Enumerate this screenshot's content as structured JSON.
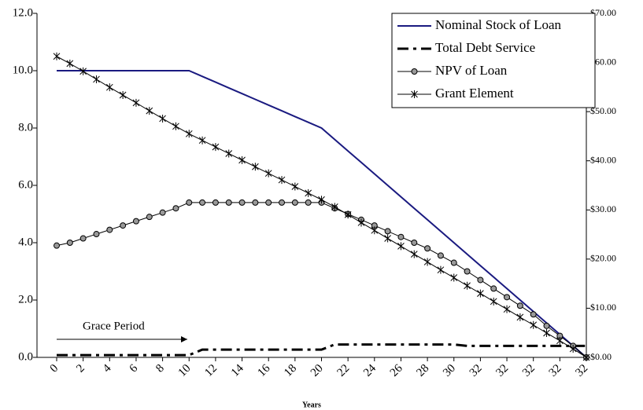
{
  "chart_data": {
    "type": "line",
    "categories": [
      "0",
      null,
      "2",
      null,
      "4",
      null,
      "6",
      null,
      "8",
      null,
      "10",
      null,
      "12",
      null,
      "14",
      null,
      "16",
      null,
      "18",
      null,
      "20",
      null,
      "22",
      null,
      "24",
      null,
      "26",
      null,
      "28",
      null,
      "30",
      null,
      "32",
      null,
      "32",
      null,
      "32",
      null,
      "32",
      null,
      "32"
    ],
    "xlabel": "Years",
    "series": [
      {
        "name": "Nominal Stock of Loan",
        "color": "#1a1a80",
        "style": "solid",
        "values": [
          10,
          10,
          10,
          10,
          10,
          10,
          10,
          10,
          10,
          10,
          10,
          9.8,
          9.6,
          9.4,
          9.2,
          9.0,
          8.8,
          8.6,
          8.4,
          8.2,
          8.0,
          7.6,
          7.2,
          6.8,
          6.4,
          6.0,
          5.6,
          5.2,
          4.8,
          4.4,
          4.0,
          3.6,
          3.2,
          2.8,
          2.4,
          2.0,
          1.6,
          1.2,
          0.8,
          0.4,
          0.0
        ]
      },
      {
        "name": "Total Debt Service",
        "color": "#000000",
        "style": "dashdot",
        "values": [
          0.08,
          0.08,
          0.08,
          0.08,
          0.08,
          0.08,
          0.08,
          0.08,
          0.08,
          0.08,
          0.08,
          0.27,
          0.27,
          0.27,
          0.27,
          0.27,
          0.27,
          0.27,
          0.27,
          0.27,
          0.27,
          0.45,
          0.45,
          0.45,
          0.45,
          0.45,
          0.45,
          0.45,
          0.45,
          0.45,
          0.45,
          0.4,
          0.4,
          0.4,
          0.4,
          0.4,
          0.4,
          0.4,
          0.4,
          0.4,
          0.4
        ]
      },
      {
        "name": "NPV of Loan",
        "color": "#000000",
        "style": "circle",
        "values": [
          3.9,
          4.0,
          4.15,
          4.3,
          4.45,
          4.6,
          4.75,
          4.9,
          5.05,
          5.2,
          5.4,
          5.4,
          5.4,
          5.4,
          5.4,
          5.4,
          5.4,
          5.4,
          5.4,
          5.4,
          5.4,
          5.2,
          5.0,
          4.8,
          4.6,
          4.4,
          4.2,
          4.0,
          3.8,
          3.55,
          3.3,
          3.0,
          2.7,
          2.4,
          2.1,
          1.8,
          1.5,
          1.1,
          0.75,
          0.4,
          0.0
        ]
      },
      {
        "name": "Grant Element",
        "color": "#000000",
        "style": "star",
        "values": [
          10.5,
          10.25,
          9.98,
          9.7,
          9.42,
          9.15,
          8.88,
          8.6,
          8.33,
          8.06,
          7.8,
          7.57,
          7.34,
          7.11,
          6.88,
          6.65,
          6.42,
          6.19,
          5.96,
          5.73,
          5.5,
          5.25,
          4.98,
          4.7,
          4.43,
          4.15,
          3.88,
          3.6,
          3.33,
          3.05,
          2.78,
          2.5,
          2.23,
          1.95,
          1.68,
          1.4,
          1.13,
          0.85,
          0.58,
          0.3,
          0.0
        ]
      }
    ],
    "ylim": [
      0,
      12
    ],
    "yticks": [
      {
        "value": 0,
        "label": "0.0"
      },
      {
        "value": 2,
        "label": "2.0"
      },
      {
        "value": 4,
        "label": "4.0"
      },
      {
        "value": 6,
        "label": "6.0"
      },
      {
        "value": 8,
        "label": "8.0"
      },
      {
        "value": 10,
        "label": "10.0"
      },
      {
        "value": 12,
        "label": "12.0"
      }
    ],
    "y2lim": [
      0,
      70
    ],
    "y2ticks": [
      {
        "value": 0,
        "label": "$0.00"
      },
      {
        "value": 10,
        "label": "$10.00"
      },
      {
        "value": 20,
        "label": "$20.00"
      },
      {
        "value": 30,
        "label": "$30.00"
      },
      {
        "value": 40,
        "label": "$40.00"
      },
      {
        "value": 50,
        "label": "$50.00"
      },
      {
        "value": 60,
        "label": "$60.00"
      },
      {
        "value": 70,
        "label": "$70.00"
      }
    ],
    "annotation": "Grace Period",
    "legend": "upper right"
  }
}
